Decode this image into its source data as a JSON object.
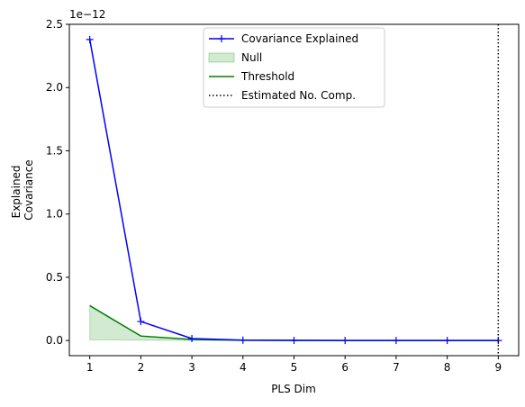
{
  "chart_data": {
    "type": "line",
    "title": "",
    "xlabel": "PLS Dim",
    "ylabel_lines": [
      "Explained",
      "Covariance"
    ],
    "offset_text": "1e−12",
    "x": [
      1,
      2,
      3,
      4,
      5,
      6,
      7,
      8,
      9
    ],
    "xlim": [
      0.6,
      9.4
    ],
    "ylim": [
      -0.12,
      2.5
    ],
    "x_ticks": [
      1,
      2,
      3,
      4,
      5,
      6,
      7,
      8,
      9
    ],
    "x_tick_labels": [
      "1",
      "2",
      "3",
      "4",
      "5",
      "6",
      "7",
      "8",
      "9"
    ],
    "y_ticks": [
      0,
      0.5,
      1.0,
      1.5,
      2.0,
      2.5
    ],
    "y_tick_labels": [
      "0.0",
      "0.5",
      "1.0",
      "1.5",
      "2.0",
      "2.5"
    ],
    "grid": false,
    "legend_position": "top-center",
    "series": [
      {
        "name": "Covariance Explained",
        "kind": "line-with-markers",
        "marker": "plus",
        "color": "#0000ff",
        "values": [
          2.38,
          0.15,
          0.015,
          0.003,
          0.001,
          0.0005,
          0.0003,
          0.0002,
          0.0001
        ]
      },
      {
        "name": "Null",
        "kind": "band",
        "color": "#2ca02c",
        "lower": [
          0.005,
          0.003,
          0.001,
          0.0005,
          0.0003,
          0.0002,
          0.0001,
          0.0001,
          0.0001
        ],
        "upper": [
          0.28,
          0.035,
          0.008,
          0.002,
          0.001,
          0.0005,
          0.0003,
          0.0002,
          0.0001
        ]
      },
      {
        "name": "Threshold",
        "kind": "line",
        "color": "#008000",
        "values": [
          0.275,
          0.035,
          0.008,
          0.002,
          0.001,
          0.0005,
          0.0003,
          0.0002,
          0.0001
        ]
      },
      {
        "name": "Estimated No. Comp.",
        "kind": "vline",
        "color": "#000000",
        "x": 9
      }
    ]
  }
}
